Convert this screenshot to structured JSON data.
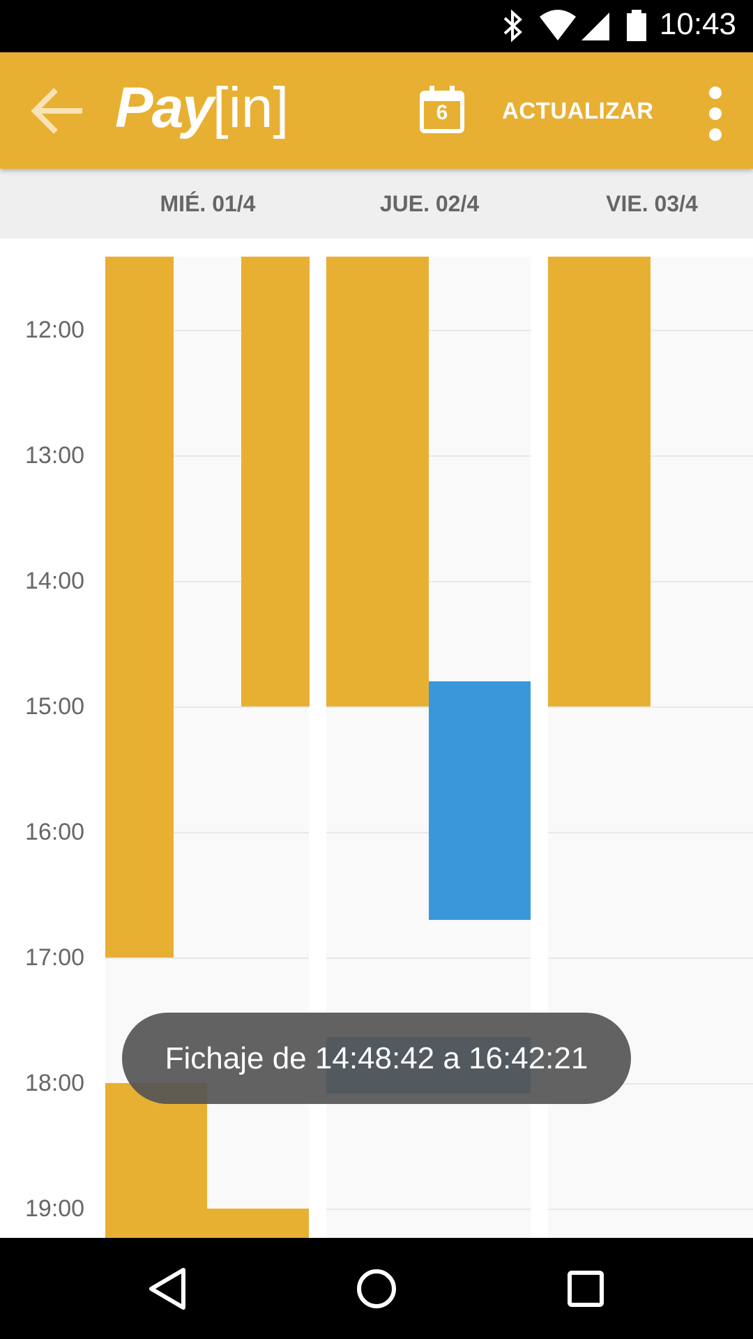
{
  "status_bar": {
    "time": "10:43",
    "icons": [
      "bluetooth-icon",
      "wifi-icon",
      "cell-signal-icon",
      "battery-icon"
    ]
  },
  "app_bar": {
    "logo_pay": "Pay",
    "logo_in": "[in]",
    "calendar_day": "6",
    "refresh_label": "ACTUALIZAR",
    "color": "#e8b032"
  },
  "days": [
    {
      "label": "MIÉ. 01/4"
    },
    {
      "label": "JUE. 02/4"
    },
    {
      "label": "VIE. 03/4"
    }
  ],
  "hours": [
    "12:00",
    "13:00",
    "14:00",
    "15:00",
    "16:00",
    "17:00",
    "18:00",
    "19:00"
  ],
  "events": [
    {
      "day": 0,
      "lane": "a",
      "type": "orange",
      "start": "11:25",
      "end": "17:00"
    },
    {
      "day": 0,
      "lane": "c",
      "type": "orange",
      "start": "11:25",
      "end": "15:00"
    },
    {
      "day": 0,
      "lane": "ab",
      "type": "orange",
      "start": "18:00",
      "end": "19:20"
    },
    {
      "day": 0,
      "lane": "cd",
      "type": "orange",
      "start": "19:00",
      "end": "19:20"
    },
    {
      "day": 1,
      "lane": "left",
      "type": "orange",
      "start": "11:25",
      "end": "15:00"
    },
    {
      "day": 1,
      "lane": "right",
      "type": "blue",
      "start": "14:48",
      "end": "16:42"
    },
    {
      "day": 1,
      "lane": "full",
      "type": "blue",
      "start": "17:38",
      "end": "18:05"
    },
    {
      "day": 2,
      "lane": "left",
      "type": "orange",
      "start": "11:25",
      "end": "15:00"
    }
  ],
  "colors": {
    "orange": "#e8b032",
    "blue": "#3898da"
  },
  "toast": {
    "text": "Fichaje de 14:48:42 a 16:42:21"
  },
  "nav_bar": {
    "icons": [
      "back-triangle-icon",
      "home-circle-icon",
      "recents-square-icon"
    ]
  }
}
